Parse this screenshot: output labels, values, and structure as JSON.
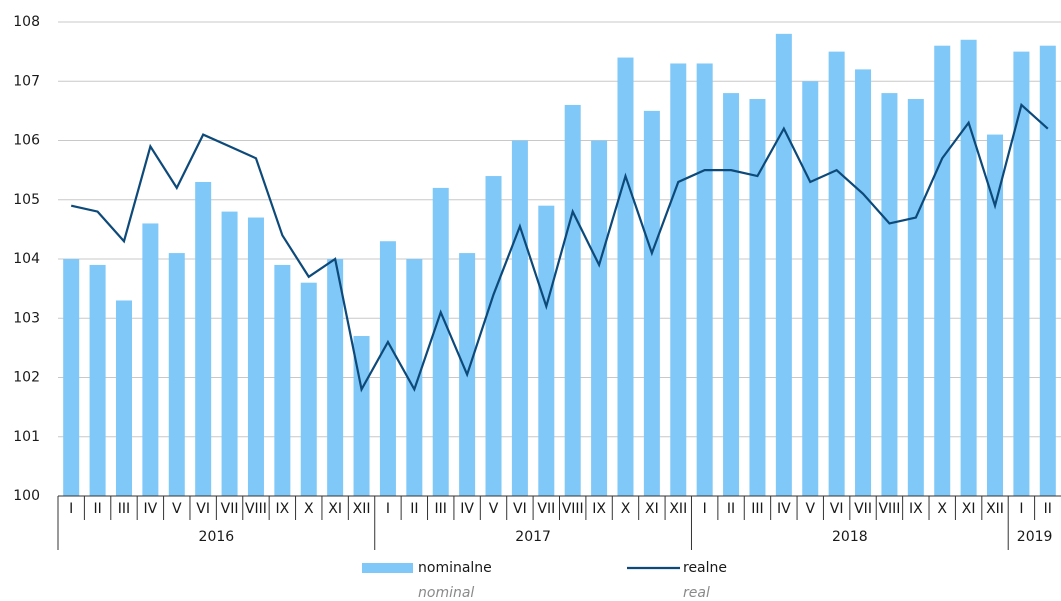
{
  "chart_data": {
    "type": "bar_line",
    "years": [
      {
        "label": "2016",
        "months": [
          "I",
          "II",
          "III",
          "IV",
          "V",
          "VI",
          "VII",
          "VIII",
          "IX",
          "X",
          "XI",
          "XII"
        ]
      },
      {
        "label": "2017",
        "months": [
          "I",
          "II",
          "III",
          "IV",
          "V",
          "VI",
          "VII",
          "VIII",
          "IX",
          "X",
          "XI",
          "XII"
        ]
      },
      {
        "label": "2018",
        "months": [
          "I",
          "II",
          "III",
          "IV",
          "V",
          "VI",
          "VII",
          "VIII",
          "IX",
          "X",
          "XI",
          "XII"
        ]
      },
      {
        "label": "2019",
        "months": [
          "I",
          "II"
        ]
      }
    ],
    "series": [
      {
        "name": "nominalne",
        "name_en": "nominal",
        "kind": "bar",
        "color": "#7fc8f8",
        "values": [
          104.0,
          103.9,
          103.3,
          104.6,
          104.1,
          105.3,
          104.8,
          104.7,
          103.9,
          103.6,
          104.0,
          102.7,
          104.3,
          104.0,
          105.2,
          104.1,
          105.4,
          106.0,
          104.9,
          106.6,
          106.0,
          107.4,
          106.5,
          107.3,
          107.3,
          106.8,
          106.7,
          107.8,
          107.0,
          107.5,
          107.2,
          106.8,
          106.7,
          107.6,
          107.7,
          106.1,
          107.5,
          107.6
        ]
      },
      {
        "name": "realne",
        "name_en": "real",
        "kind": "line",
        "color": "#0d4a7a",
        "values": [
          104.9,
          104.8,
          104.3,
          105.9,
          105.2,
          106.1,
          105.9,
          105.7,
          104.4,
          103.7,
          104.0,
          101.8,
          102.6,
          101.8,
          103.1,
          102.05,
          103.4,
          104.55,
          103.2,
          104.8,
          103.9,
          105.4,
          104.1,
          105.3,
          105.5,
          105.5,
          105.4,
          106.2,
          105.3,
          105.5,
          105.1,
          104.6,
          104.7,
          105.7,
          106.3,
          104.9,
          106.6,
          106.2
        ]
      }
    ],
    "ylim": [
      100,
      108
    ],
    "yticks": [
      100,
      101,
      102,
      103,
      104,
      105,
      106,
      107,
      108
    ],
    "grid": true
  }
}
